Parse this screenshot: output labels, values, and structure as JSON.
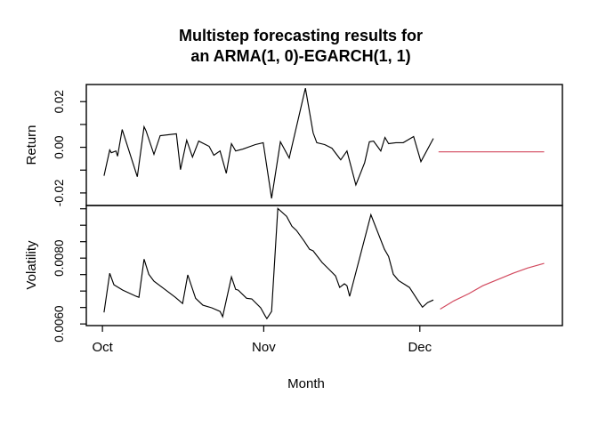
{
  "title": {
    "line1": "Multistep forecasting results for",
    "line2": "an ARMA(1, 0)-EGARCH(1, 1)"
  },
  "colors": {
    "axis": "#000000",
    "observed": "#000000",
    "forecast": "#d2495e",
    "background": "#ffffff"
  },
  "x_axis": {
    "label": "Month",
    "xlim": [
      -3.1,
      88.4
    ],
    "unit": "days since Oct 1",
    "ticks": [
      {
        "value": 0,
        "label": "Oct"
      },
      {
        "value": 31,
        "label": "Nov"
      },
      {
        "value": 61,
        "label": "Dec"
      }
    ]
  },
  "chart_data": [
    {
      "type": "line",
      "panel": "return",
      "ylabel": "Return",
      "ylim": [
        -0.0255,
        0.0275
      ],
      "grid": false,
      "yticks": [
        {
          "value": -0.02,
          "label": "-0.02"
        },
        {
          "value": -0.01,
          "label": ""
        },
        {
          "value": 0.0,
          "label": "0.00"
        },
        {
          "value": 0.01,
          "label": ""
        },
        {
          "value": 0.02,
          "label": "0.02"
        }
      ],
      "series": [
        {
          "name": "observed-return",
          "role": "observed",
          "color": "#000000",
          "points": [
            [
              0.3,
              -0.0125
            ],
            [
              1.4,
              -0.0012
            ],
            [
              1.7,
              -0.0024
            ],
            [
              2.6,
              -0.0016
            ],
            [
              2.9,
              -0.0039
            ],
            [
              3.8,
              0.0078
            ],
            [
              6.7,
              -0.0129
            ],
            [
              8.0,
              0.009
            ],
            [
              8.4,
              0.0071
            ],
            [
              9.9,
              -0.0031
            ],
            [
              11.1,
              0.0051
            ],
            [
              14.2,
              0.0059
            ],
            [
              15.0,
              -0.0098
            ],
            [
              16.2,
              0.0031
            ],
            [
              17.3,
              -0.0043
            ],
            [
              18.5,
              0.0027
            ],
            [
              20.5,
              0.0004
            ],
            [
              21.4,
              -0.0035
            ],
            [
              22.6,
              -0.0016
            ],
            [
              23.8,
              -0.0114
            ],
            [
              24.8,
              0.0016
            ],
            [
              25.6,
              -0.0016
            ],
            [
              27.0,
              -0.0008
            ],
            [
              29.4,
              0.0012
            ],
            [
              30.9,
              0.002
            ],
            [
              32.5,
              -0.0224
            ],
            [
              34.2,
              0.0024
            ],
            [
              35.9,
              -0.0047
            ],
            [
              39.0,
              0.0259
            ],
            [
              40.5,
              0.0063
            ],
            [
              41.2,
              0.002
            ],
            [
              42.7,
              0.0012
            ],
            [
              44.1,
              -0.0004
            ],
            [
              45.8,
              -0.0055
            ],
            [
              47.0,
              -0.0016
            ],
            [
              48.7,
              -0.0165
            ],
            [
              50.4,
              -0.0067
            ],
            [
              51.3,
              0.0024
            ],
            [
              52.1,
              0.0027
            ],
            [
              53.5,
              -0.0016
            ],
            [
              54.3,
              0.0043
            ],
            [
              55.0,
              0.0016
            ],
            [
              56.4,
              0.002
            ],
            [
              57.8,
              0.002
            ],
            [
              59.8,
              0.0047
            ],
            [
              61.2,
              -0.0063
            ],
            [
              63.6,
              0.0039
            ]
          ]
        },
        {
          "name": "forecast-return",
          "role": "forecast",
          "color": "#d2495e",
          "points": [
            [
              64.6,
              -0.002
            ],
            [
              84.9,
              -0.002
            ]
          ]
        }
      ]
    },
    {
      "type": "line",
      "panel": "volatility",
      "ylabel": "Volatility",
      "ylim": [
        0.00595,
        0.0096
      ],
      "grid": false,
      "yticks": [
        {
          "value": 0.006,
          "label": "0.0060"
        },
        {
          "value": 0.0065,
          "label": ""
        },
        {
          "value": 0.007,
          "label": ""
        },
        {
          "value": 0.0075,
          "label": ""
        },
        {
          "value": 0.008,
          "label": "0.0080"
        },
        {
          "value": 0.0085,
          "label": ""
        },
        {
          "value": 0.009,
          "label": ""
        },
        {
          "value": 0.0095,
          "label": ""
        }
      ],
      "series": [
        {
          "name": "observed-volatility",
          "role": "observed",
          "color": "#000000",
          "points": [
            [
              0.3,
              0.00635
            ],
            [
              1.4,
              0.00754
            ],
            [
              2.2,
              0.00719
            ],
            [
              3.9,
              0.00703
            ],
            [
              6.5,
              0.00684
            ],
            [
              7.0,
              0.00681
            ],
            [
              8.0,
              0.00797
            ],
            [
              8.9,
              0.00751
            ],
            [
              9.9,
              0.0073
            ],
            [
              12.0,
              0.00705
            ],
            [
              14.0,
              0.00681
            ],
            [
              15.4,
              0.00662
            ],
            [
              16.4,
              0.00749
            ],
            [
              17.9,
              0.00678
            ],
            [
              19.3,
              0.00657
            ],
            [
              21.0,
              0.00649
            ],
            [
              22.6,
              0.00638
            ],
            [
              23.1,
              0.00622
            ],
            [
              24.8,
              0.00743
            ],
            [
              25.6,
              0.00705
            ],
            [
              26.1,
              0.00703
            ],
            [
              27.7,
              0.00678
            ],
            [
              28.7,
              0.00676
            ],
            [
              30.4,
              0.00649
            ],
            [
              31.3,
              0.00624
            ],
            [
              31.6,
              0.00616
            ],
            [
              32.5,
              0.00638
            ],
            [
              33.7,
              0.00951
            ],
            [
              35.4,
              0.00927
            ],
            [
              36.4,
              0.00897
            ],
            [
              37.3,
              0.00884
            ],
            [
              38.8,
              0.00851
            ],
            [
              39.8,
              0.00827
            ],
            [
              40.5,
              0.00822
            ],
            [
              42.2,
              0.00787
            ],
            [
              43.6,
              0.00765
            ],
            [
              44.8,
              0.00746
            ],
            [
              45.6,
              0.00711
            ],
            [
              46.5,
              0.00722
            ],
            [
              47.0,
              0.00716
            ],
            [
              47.5,
              0.00684
            ],
            [
              51.6,
              0.00932
            ],
            [
              54.2,
              0.00827
            ],
            [
              55.0,
              0.00805
            ],
            [
              55.9,
              0.00751
            ],
            [
              56.9,
              0.00732
            ],
            [
              59.0,
              0.00711
            ],
            [
              60.7,
              0.0067
            ],
            [
              61.5,
              0.00651
            ],
            [
              62.5,
              0.00665
            ],
            [
              63.6,
              0.00673
            ]
          ]
        },
        {
          "name": "forecast-volatility",
          "role": "forecast",
          "color": "#d2495e",
          "points": [
            [
              64.9,
              0.00645
            ],
            [
              67.5,
              0.0067
            ],
            [
              70.4,
              0.00692
            ],
            [
              73.1,
              0.00716
            ],
            [
              76.0,
              0.00735
            ],
            [
              78.9,
              0.00754
            ],
            [
              81.7,
              0.0077
            ],
            [
              84.9,
              0.00784
            ]
          ]
        }
      ]
    }
  ]
}
